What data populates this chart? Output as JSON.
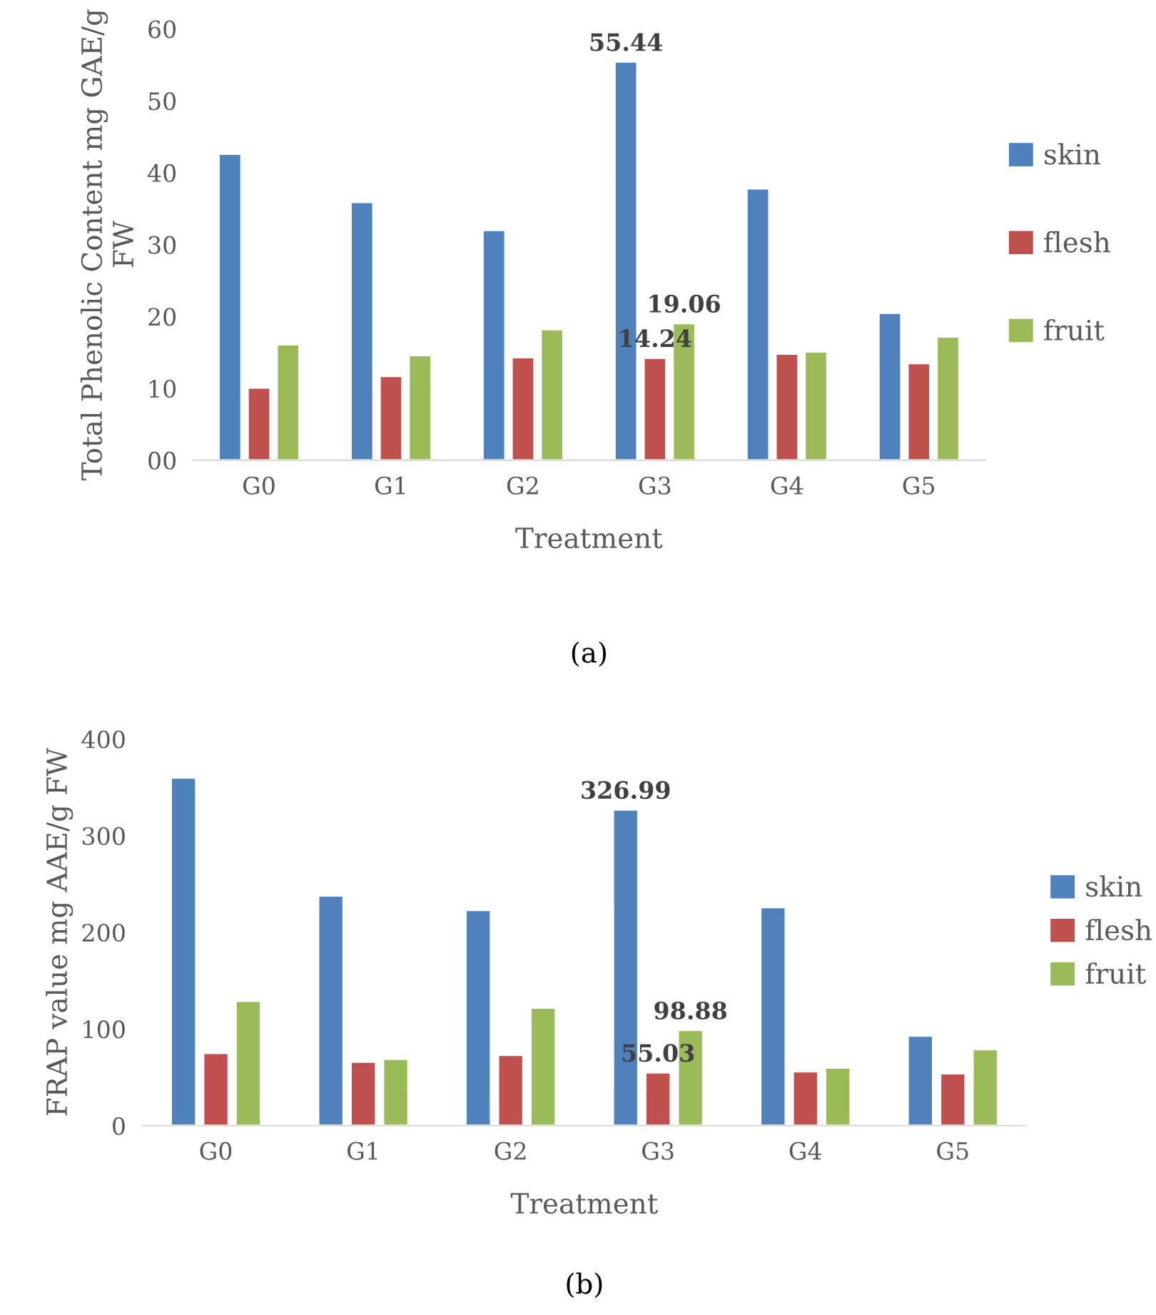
{
  "chart_data": [
    {
      "type": "bar",
      "xlabel": "Treatment",
      "ylabel": "Total Phenolic Content mg GAE/g FW",
      "annotations": [
        "(a)"
      ],
      "categories": [
        "G0",
        "G1",
        "G2",
        "G3",
        "G4",
        "G5"
      ],
      "series": [
        {
          "name": "skin",
          "color": "#4f81bd",
          "values": [
            42.6,
            35.9,
            32.0,
            55.44,
            37.8,
            20.5
          ],
          "value_labels": [
            null,
            null,
            null,
            "55.44",
            null,
            null
          ]
        },
        {
          "name": "flesh",
          "color": "#c0504d",
          "values": [
            10.1,
            11.7,
            14.3,
            14.24,
            14.8,
            13.5
          ],
          "value_labels": [
            null,
            null,
            null,
            "14.24",
            null,
            null
          ]
        },
        {
          "name": "fruit",
          "color": "#9bbb59",
          "values": [
            16.1,
            14.6,
            18.2,
            19.06,
            15.1,
            17.2
          ],
          "value_labels": [
            null,
            null,
            null,
            "19.06",
            null,
            null
          ]
        }
      ],
      "ylim": [
        0,
        60
      ],
      "yticks": [
        {
          "value": 0,
          "label": "00"
        },
        10,
        20,
        30,
        40,
        50,
        60
      ],
      "grid": false,
      "legend": "right"
    },
    {
      "type": "bar",
      "xlabel": "Treatment",
      "ylabel": "FRAP value mg AAE/g FW",
      "annotations": [
        "(b)"
      ],
      "categories": [
        "G0",
        "G1",
        "G2",
        "G3",
        "G4",
        "G5"
      ],
      "series": [
        {
          "name": "skin",
          "color": "#4f81bd",
          "values": [
            360,
            238,
            223,
            326.99,
            226,
            93
          ],
          "value_labels": [
            null,
            null,
            null,
            "326.99",
            null,
            null
          ]
        },
        {
          "name": "flesh",
          "color": "#c0504d",
          "values": [
            75,
            66,
            73,
            55.03,
            56,
            54
          ],
          "value_labels": [
            null,
            null,
            null,
            "55.03",
            null,
            null
          ]
        },
        {
          "name": "fruit",
          "color": "#9bbb59",
          "values": [
            129,
            69,
            122,
            98.88,
            60,
            79
          ],
          "value_labels": [
            null,
            null,
            null,
            "98.88",
            null,
            null
          ]
        }
      ],
      "ylim": [
        0,
        400
      ],
      "yticks": [
        0,
        100,
        200,
        300,
        400
      ],
      "grid": false,
      "legend": "right"
    }
  ]
}
